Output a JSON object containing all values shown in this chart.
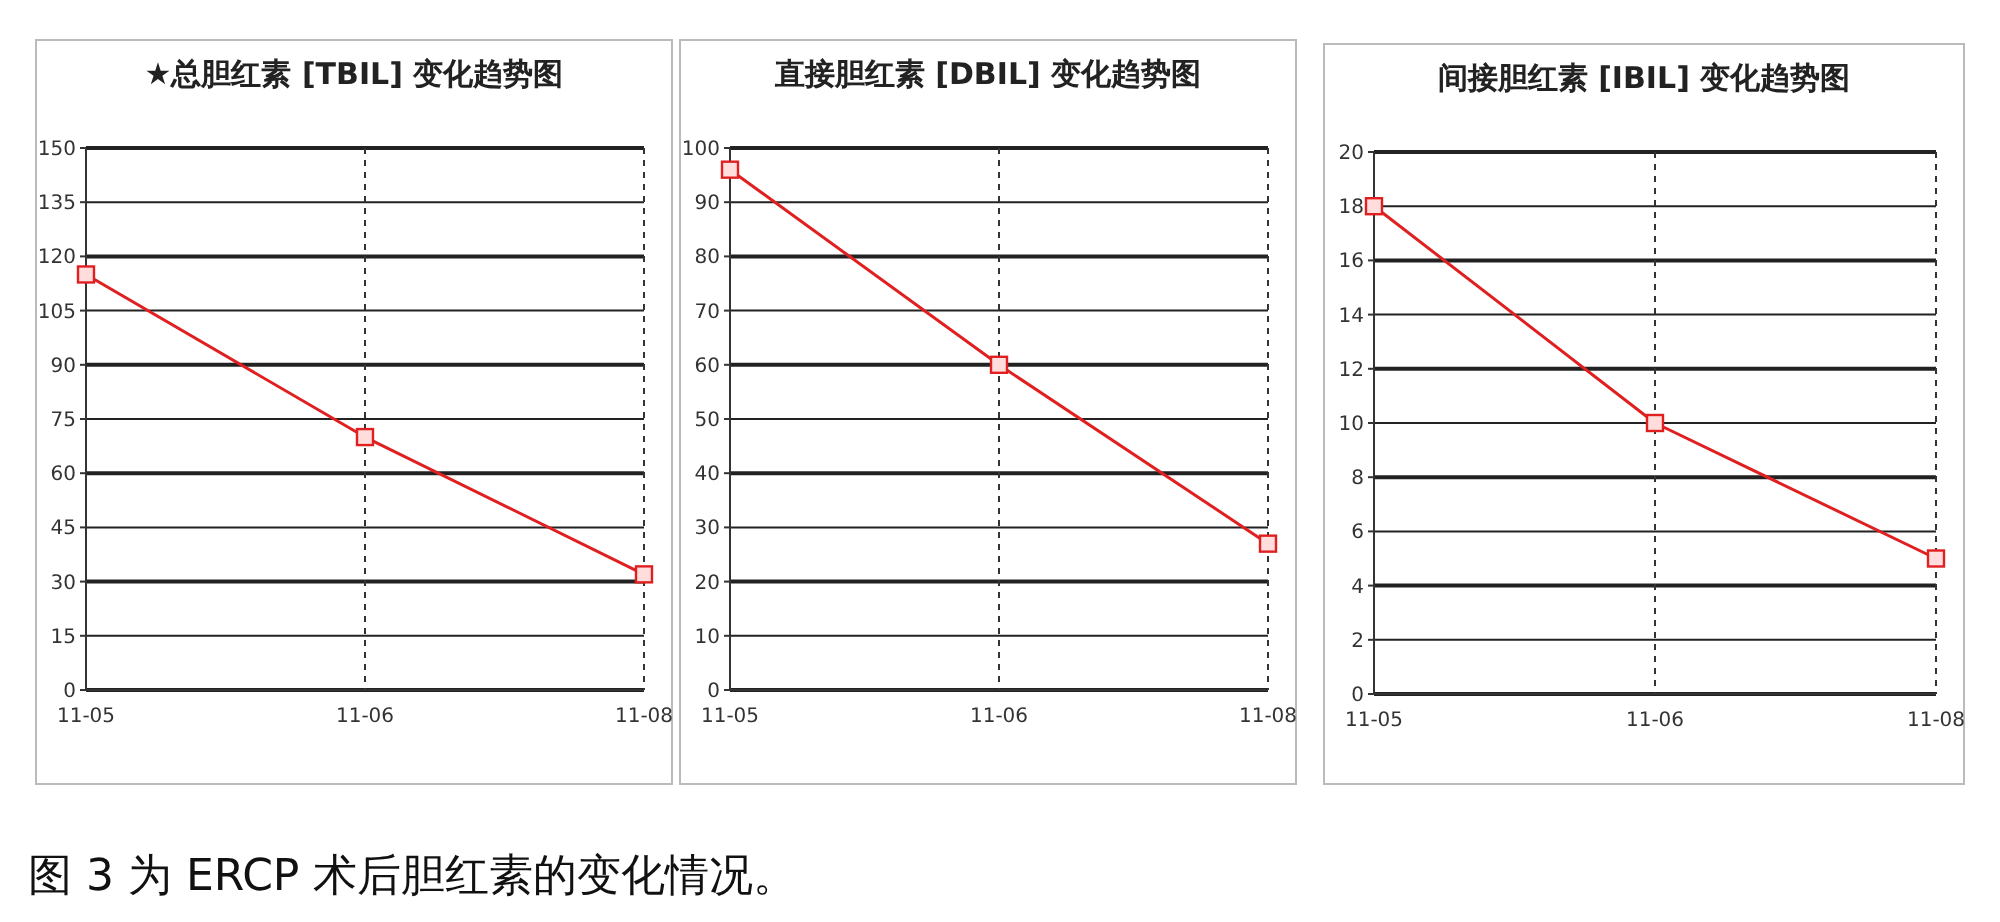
{
  "chart_data": [
    {
      "type": "line",
      "title": "★总胆红素 [TBIL] 变化趋势图",
      "categories": [
        "11-05",
        "11-06",
        "11-08"
      ],
      "series": [
        {
          "color": "#e02020",
          "values": [
            115,
            70,
            32
          ]
        }
      ],
      "ylim": [
        0,
        150
      ],
      "yticks": [
        0,
        15,
        30,
        45,
        60,
        75,
        90,
        105,
        120,
        135,
        150
      ],
      "grid": "y",
      "ref_lines": [
        {
          "axis": "x",
          "value": "11-06",
          "line_style": "dashed"
        },
        {
          "axis": "x",
          "value": "11-08",
          "line_style": "dashed"
        }
      ],
      "marker": "square",
      "line_style": "solid",
      "annotations": [
        "图 3 为 ERCP 术后胆红素的变化情况。"
      ]
    },
    {
      "type": "line",
      "title": "直接胆红素 [DBIL] 变化趋势图",
      "categories": [
        "11-05",
        "11-06",
        "11-08"
      ],
      "series": [
        {
          "color": "#e02020",
          "values": [
            96,
            60,
            27
          ]
        }
      ],
      "ylim": [
        0,
        100
      ],
      "yticks": [
        0,
        10,
        20,
        30,
        40,
        50,
        60,
        70,
        80,
        90,
        100
      ],
      "grid": "y",
      "ref_lines": [
        {
          "axis": "x",
          "value": "11-06",
          "line_style": "dashed"
        },
        {
          "axis": "x",
          "value": "11-08",
          "line_style": "dashed"
        }
      ],
      "marker": "square",
      "line_style": "solid"
    },
    {
      "type": "line",
      "title": "间接胆红素 [IBIL] 变化趋势图",
      "categories": [
        "11-05",
        "11-06",
        "11-08"
      ],
      "series": [
        {
          "color": "#e02020",
          "values": [
            18,
            10,
            5
          ]
        }
      ],
      "ylim": [
        0,
        20
      ],
      "yticks": [
        0,
        2,
        4,
        6,
        8,
        10,
        12,
        14,
        16,
        18,
        20
      ],
      "grid": "y",
      "ref_lines": [
        {
          "axis": "x",
          "value": "11-06",
          "line_style": "dashed"
        },
        {
          "axis": "x",
          "value": "11-08",
          "line_style": "dashed"
        }
      ],
      "marker": "square",
      "line_style": "solid"
    }
  ]
}
